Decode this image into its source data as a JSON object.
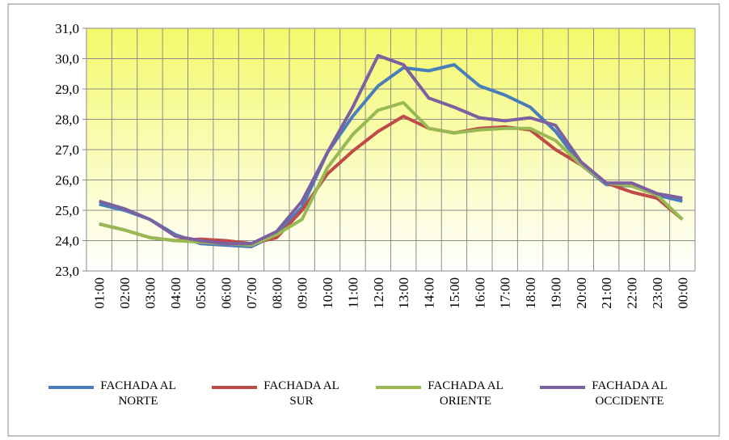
{
  "chart_data": {
    "type": "line",
    "categories": [
      "01:00",
      "02:00",
      "03:00",
      "04:00",
      "05:00",
      "06:00",
      "07:00",
      "08:00",
      "09:00",
      "10:00",
      "11:00",
      "12:00",
      "13:00",
      "14:00",
      "15:00",
      "16:00",
      "17:00",
      "18:00",
      "19:00",
      "20:00",
      "21:00",
      "22:00",
      "23:00",
      "00:00"
    ],
    "series": [
      {
        "name": "FACHADA AL NORTE",
        "color": "#4a7ebb",
        "values": [
          25.2,
          25.0,
          24.7,
          24.2,
          23.9,
          23.85,
          23.8,
          24.2,
          25.1,
          26.9,
          28.1,
          29.1,
          29.7,
          29.6,
          29.8,
          29.1,
          28.8,
          28.4,
          27.6,
          26.5,
          25.85,
          25.8,
          25.5,
          25.3
        ]
      },
      {
        "name": "FACHADA AL SUR",
        "color": "#be4b48",
        "values": [
          24.55,
          24.35,
          24.1,
          24.0,
          24.05,
          24.0,
          23.9,
          24.1,
          25.0,
          26.2,
          26.95,
          27.6,
          28.1,
          27.7,
          27.55,
          27.7,
          27.75,
          27.65,
          27.0,
          26.5,
          25.9,
          25.6,
          25.4,
          24.7
        ]
      },
      {
        "name": "FACHADA AL ORIENTE",
        "color": "#98b954",
        "values": [
          24.55,
          24.35,
          24.1,
          24.0,
          23.95,
          23.9,
          23.85,
          24.2,
          24.7,
          26.4,
          27.5,
          28.3,
          28.55,
          27.7,
          27.55,
          27.65,
          27.7,
          27.7,
          27.3,
          26.5,
          25.9,
          25.8,
          25.5,
          24.7
        ]
      },
      {
        "name": "FACHADA AL OCCIDENTE",
        "color": "#7d60a0",
        "values": [
          25.3,
          25.05,
          24.7,
          24.15,
          24.0,
          23.9,
          23.9,
          24.3,
          25.3,
          26.9,
          28.4,
          30.1,
          29.8,
          28.7,
          28.4,
          28.05,
          27.95,
          28.05,
          27.8,
          26.6,
          25.9,
          25.9,
          25.55,
          25.4
        ]
      }
    ],
    "ylim": [
      23,
      31
    ],
    "yticks": [
      {
        "value": 23,
        "label": "23,0"
      },
      {
        "value": 24,
        "label": "24,0"
      },
      {
        "value": 25,
        "label": "25,0"
      },
      {
        "value": 26,
        "label": "26,0"
      },
      {
        "value": 27,
        "label": "27,0"
      },
      {
        "value": 28,
        "label": "28,0"
      },
      {
        "value": 29,
        "label": "29,0"
      },
      {
        "value": 30,
        "label": "30,0"
      },
      {
        "value": 31,
        "label": "31,0"
      }
    ],
    "grid": true,
    "legend": "bottom"
  }
}
